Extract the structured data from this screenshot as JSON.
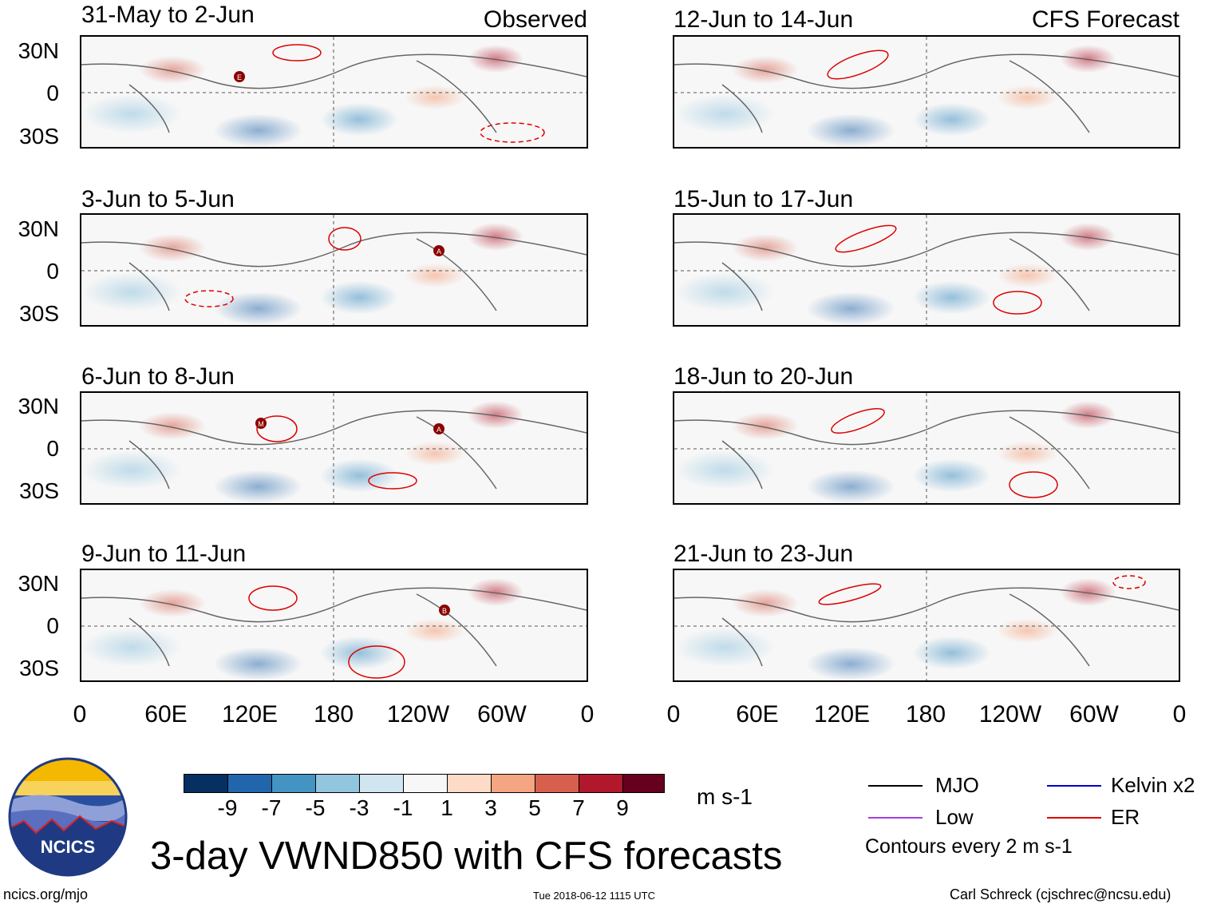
{
  "observed_label": "Observed",
  "forecast_label": "CFS Forecast",
  "left_panels": [
    {
      "title": "31-May to 2-Jun"
    },
    {
      "title": "3-Jun to 5-Jun"
    },
    {
      "title": "6-Jun to 8-Jun"
    },
    {
      "title": "9-Jun to 11-Jun"
    }
  ],
  "right_panels": [
    {
      "title": "12-Jun to 14-Jun"
    },
    {
      "title": "15-Jun to 17-Jun"
    },
    {
      "title": "18-Jun to 20-Jun"
    },
    {
      "title": "21-Jun to 23-Jun"
    }
  ],
  "y_ticks": [
    "30N",
    "0",
    "30S"
  ],
  "x_ticks": [
    "0",
    "60E",
    "120E",
    "180",
    "120W",
    "60W",
    "0"
  ],
  "colorbar": {
    "colors": [
      "#053061",
      "#2166ac",
      "#4393c3",
      "#92c5de",
      "#d1e5f0",
      "#f7f7f7",
      "#fddbc7",
      "#f4a582",
      "#d6604d",
      "#b2182b",
      "#67001f"
    ],
    "labels": [
      "-9",
      "-7",
      "-5",
      "-3",
      "-1",
      "1",
      "3",
      "5",
      "7",
      "9"
    ],
    "units": "m s-1"
  },
  "legend": {
    "mjo": {
      "label": "MJO",
      "color": "#000000"
    },
    "kelvin": {
      "label": "Kelvin x2",
      "color": "#0000cc"
    },
    "low": {
      "label": "Low",
      "color": "#a040e0"
    },
    "er": {
      "label": "ER",
      "color": "#dd0000"
    },
    "note": "Contours every 2 m s-1"
  },
  "main_title": "3-day VWND850 with CFS forecasts",
  "logo_text": "NCICS",
  "footer_left": "ncics.org/mjo",
  "footer_center": "Tue 2018-06-12 1115 UTC",
  "footer_right": "Carl Schreck (cjschrec@ncsu.edu)",
  "markers": {
    "e": "E",
    "a": "A",
    "m": "M",
    "b": "B"
  }
}
